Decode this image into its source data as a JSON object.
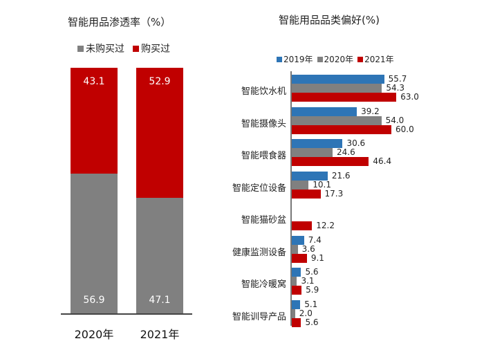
{
  "left_chart": {
    "title": "智能用品渗透率（%）",
    "legend": [
      {
        "label": "未购买过",
        "color": "#808080"
      },
      {
        "label": "购买过",
        "color": "#c00000"
      }
    ],
    "bars": [
      {
        "year": "2020年",
        "not_purchased": "56.9",
        "purchased": "43.1"
      },
      {
        "year": "2021年",
        "not_purchased": "47.1",
        "purchased": "52.9"
      }
    ]
  },
  "right_chart": {
    "title": "智能用品品类偏好(%)",
    "legend": [
      {
        "label": "2019年",
        "color": "#2e75b6"
      },
      {
        "label": "2020年",
        "color": "#808080"
      },
      {
        "label": "2021年",
        "color": "#c00000"
      }
    ],
    "categories": [
      {
        "name": "智能饮水机",
        "v2019": "55.7",
        "v2020": "54.3",
        "v2021": "63.0"
      },
      {
        "name": "智能摄像头",
        "v2019": "39.2",
        "v2020": "54.0",
        "v2021": "60.0"
      },
      {
        "name": "智能喂食器",
        "v2019": "30.6",
        "v2020": "24.6",
        "v2021": "46.4"
      },
      {
        "name": "智能定位设备",
        "v2019": "21.6",
        "v2020": "10.1",
        "v2021": "17.3"
      },
      {
        "name": "智能猫砂盆",
        "v2019": "",
        "v2020": "",
        "v2021": "12.2"
      },
      {
        "name": "健康监测设备",
        "v2019": "7.4",
        "v2020": "3.6",
        "v2021": "9.1"
      },
      {
        "name": "智能冷暖窝",
        "v2019": "5.6",
        "v2020": "3.1",
        "v2021": "5.9"
      },
      {
        "name": "智能训导产品",
        "v2019": "5.1",
        "v2020": "2.0",
        "v2021": "5.6"
      }
    ]
  },
  "chart_data": [
    {
      "type": "bar",
      "stacked": true,
      "title": "智能用品渗透率（%）",
      "categories": [
        "2020年",
        "2021年"
      ],
      "series": [
        {
          "name": "未购买过",
          "values": [
            56.9,
            47.1
          ],
          "color": "#808080"
        },
        {
          "name": "购买过",
          "values": [
            43.1,
            52.9
          ],
          "color": "#c00000"
        }
      ],
      "xlabel": "",
      "ylabel": "",
      "ylim": [
        0,
        100
      ],
      "legend_position": "top",
      "grid": false
    },
    {
      "type": "bar",
      "orientation": "horizontal",
      "title": "智能用品品类偏好(%)",
      "categories": [
        "智能饮水机",
        "智能摄像头",
        "智能喂食器",
        "智能定位设备",
        "智能猫砂盆",
        "健康监测设备",
        "智能冷暖窝",
        "智能训导产品"
      ],
      "series": [
        {
          "name": "2019年",
          "values": [
            55.7,
            39.2,
            30.6,
            21.6,
            null,
            7.4,
            5.6,
            5.1
          ],
          "color": "#2e75b6"
        },
        {
          "name": "2020年",
          "values": [
            54.3,
            54.0,
            24.6,
            10.1,
            null,
            3.6,
            3.1,
            2.0
          ],
          "color": "#808080"
        },
        {
          "name": "2021年",
          "values": [
            63.0,
            60.0,
            46.4,
            17.3,
            12.2,
            9.1,
            5.9,
            5.6
          ],
          "color": "#c00000"
        }
      ],
      "xlabel": "",
      "ylabel": "",
      "xlim": [
        0,
        70
      ],
      "legend_position": "top",
      "grid": false
    }
  ]
}
